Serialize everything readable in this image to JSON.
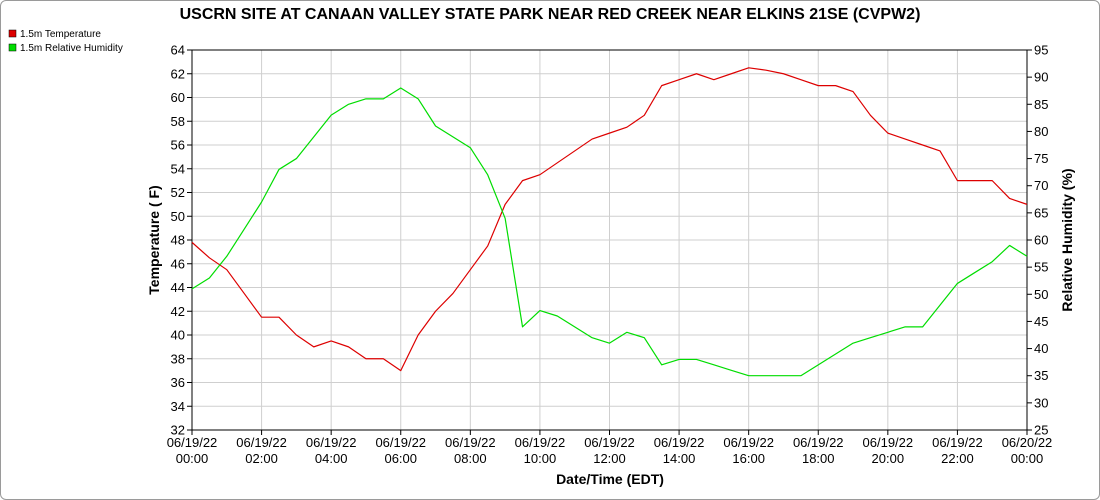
{
  "chart_data": {
    "type": "line",
    "title": "USCRN SITE AT CANAAN VALLEY STATE PARK NEAR RED CREEK NEAR ELKINS 21SE (CVPW2)",
    "xlabel": "Date/Time (EDT)",
    "ylabel": "Temperature ( F)",
    "y2label": "Relative Humidity (%)",
    "ylim": [
      32,
      64
    ],
    "y2lim": [
      25,
      95
    ],
    "yticks": [
      "32",
      "34",
      "36",
      "38",
      "40",
      "42",
      "44",
      "46",
      "48",
      "50",
      "52",
      "54",
      "56",
      "58",
      "60",
      "62",
      "64"
    ],
    "y2ticks": [
      "25",
      "30",
      "35",
      "40",
      "45",
      "50",
      "55",
      "60",
      "65",
      "70",
      "75",
      "80",
      "85",
      "90",
      "95"
    ],
    "xticks": [
      {
        "date": "06/19/22",
        "time": "00:00"
      },
      {
        "date": "06/19/22",
        "time": "02:00"
      },
      {
        "date": "06/19/22",
        "time": "04:00"
      },
      {
        "date": "06/19/22",
        "time": "06:00"
      },
      {
        "date": "06/19/22",
        "time": "08:00"
      },
      {
        "date": "06/19/22",
        "time": "10:00"
      },
      {
        "date": "06/19/22",
        "time": "12:00"
      },
      {
        "date": "06/19/22",
        "time": "14:00"
      },
      {
        "date": "06/19/22",
        "time": "16:00"
      },
      {
        "date": "06/19/22",
        "time": "18:00"
      },
      {
        "date": "06/19/22",
        "time": "20:00"
      },
      {
        "date": "06/19/22",
        "time": "22:00"
      },
      {
        "date": "06/20/22",
        "time": "00:00"
      }
    ],
    "grid": true,
    "legend_position": "top-left",
    "x_hours": [
      0,
      0.5,
      1,
      1.5,
      2,
      2.5,
      3,
      3.5,
      4,
      4.5,
      5,
      5.5,
      6,
      6.5,
      7,
      7.5,
      8,
      8.5,
      9,
      9.5,
      10,
      10.5,
      11,
      11.5,
      12,
      12.5,
      13,
      13.5,
      14,
      14.5,
      15,
      15.5,
      16,
      16.5,
      17,
      17.5,
      18,
      18.5,
      19,
      19.5,
      20,
      20.5,
      21,
      21.5,
      22,
      22.5,
      23,
      23.5,
      24
    ],
    "series": [
      {
        "name": "1.5m Temperature",
        "color": "#dd0000",
        "axis": "left",
        "values": [
          47.8,
          46.5,
          45.5,
          43.5,
          41.5,
          41.5,
          40.0,
          39.0,
          39.5,
          39.0,
          38.0,
          38.0,
          37.0,
          40.0,
          42.0,
          43.5,
          45.5,
          47.5,
          51.0,
          53.0,
          53.5,
          54.5,
          55.5,
          56.5,
          57.0,
          57.5,
          58.5,
          61.0,
          61.5,
          62.0,
          61.5,
          62.0,
          62.5,
          62.3,
          62.0,
          61.5,
          61.0,
          61.0,
          60.5,
          58.5,
          57.0,
          56.5,
          56.0,
          55.5,
          53.0,
          53.0,
          53.0,
          51.5,
          51.0
        ]
      },
      {
        "name": "1.5m Relative Humidity",
        "color": "#00dd00",
        "axis": "right",
        "values": [
          51,
          53,
          57,
          62,
          67,
          73,
          75,
          79,
          83,
          85,
          86,
          86,
          88,
          86,
          81,
          79,
          77,
          72,
          64,
          44,
          47,
          46,
          44,
          42,
          41,
          43,
          42,
          37,
          38,
          38,
          37,
          36,
          35,
          35,
          35,
          35,
          37,
          39,
          41,
          42,
          43,
          44,
          44,
          48,
          52,
          54,
          56,
          59,
          57
        ]
      }
    ]
  }
}
